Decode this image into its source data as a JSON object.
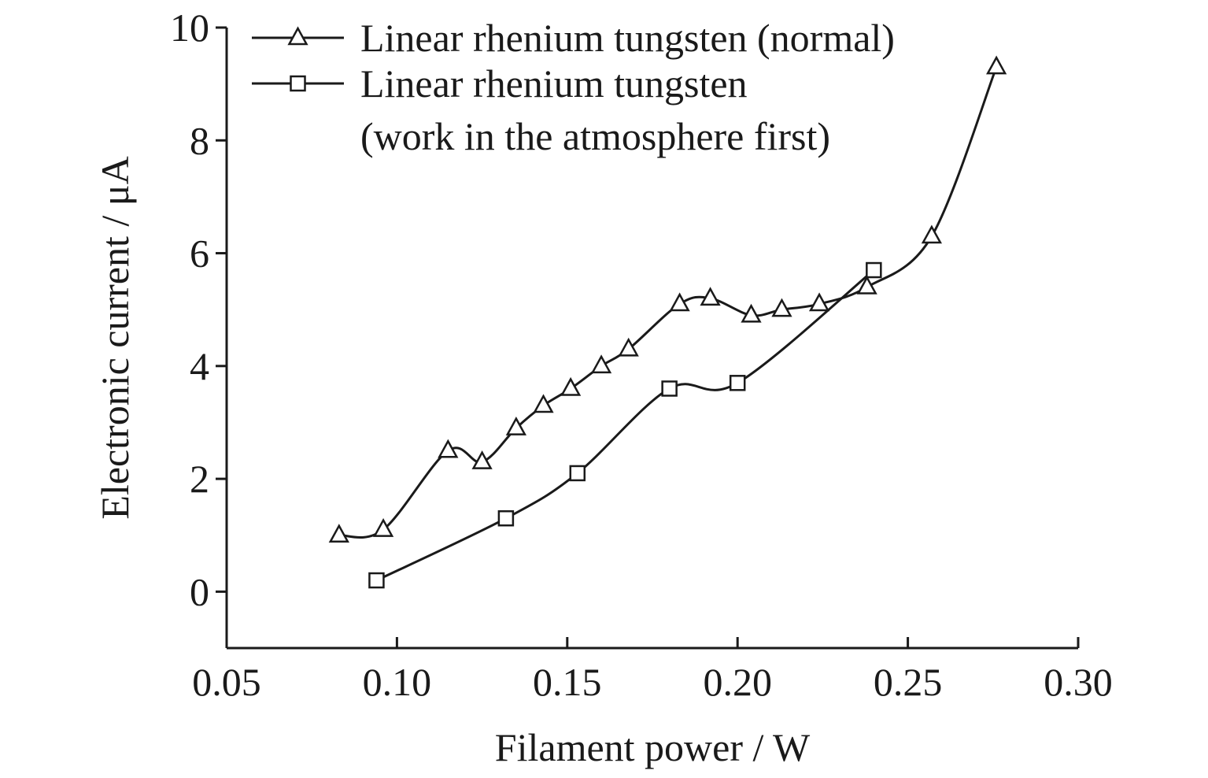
{
  "chart_data": {
    "type": "line",
    "title": "",
    "xlabel": "Filament power / W",
    "ylabel": "Electronic current / μA",
    "xlim": [
      0.05,
      0.3
    ],
    "ylim": [
      -1,
      10
    ],
    "xticks": [
      0.05,
      0.1,
      0.15,
      0.2,
      0.25,
      0.3
    ],
    "xtick_labels": [
      "0.05",
      "0.10",
      "0.15",
      "0.20",
      "0.25",
      "0.30"
    ],
    "yticks": [
      0,
      2,
      4,
      6,
      8,
      10
    ],
    "ytick_labels": [
      "0",
      "2",
      "4",
      "6",
      "8",
      "10"
    ],
    "grid": false,
    "legend_position": "top-left",
    "series": [
      {
        "name": "Linear rhenium tungsten (normal)",
        "marker": "triangle",
        "color": "#1a1a1a",
        "x": [
          0.083,
          0.096,
          0.115,
          0.125,
          0.135,
          0.143,
          0.151,
          0.16,
          0.168,
          0.183,
          0.192,
          0.204,
          0.213,
          0.224,
          0.238,
          0.257,
          0.276
        ],
        "y": [
          1.0,
          1.1,
          2.5,
          2.3,
          2.9,
          3.3,
          3.6,
          4.0,
          4.3,
          5.1,
          5.2,
          4.9,
          5.0,
          5.1,
          5.4,
          6.3,
          9.3
        ]
      },
      {
        "name": "Linear rhenium tungsten (work in the atmosphere first)",
        "legend_lines": [
          "Linear rhenium tungsten",
          "(work in the atmosphere first)"
        ],
        "marker": "square",
        "color": "#1a1a1a",
        "x": [
          0.094,
          0.132,
          0.153,
          0.18,
          0.2,
          0.24
        ],
        "y": [
          0.2,
          1.3,
          2.1,
          3.6,
          3.7,
          5.7
        ]
      }
    ]
  }
}
